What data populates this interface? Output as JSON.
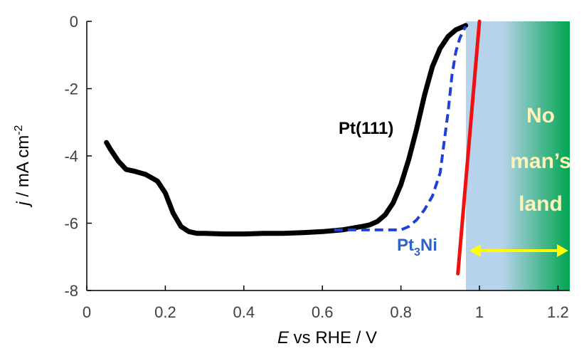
{
  "chart_data": {
    "type": "line",
    "xlabel": {
      "italic": "E",
      "rest": " vs RHE / V"
    },
    "ylabel": {
      "italic": "j",
      "rest": " / mA cm",
      "sup": "-2"
    },
    "xlim": [
      0,
      1.23
    ],
    "ylim": [
      -8,
      0
    ],
    "xticks": [
      0,
      0.2,
      0.4,
      0.6,
      0.8,
      1,
      1.2
    ],
    "xtick_labels": [
      "0",
      "0.2",
      "0.4",
      "0.6",
      "0.8",
      "1",
      "1.2"
    ],
    "yticks": [
      0,
      -2,
      -4,
      -6,
      -8
    ],
    "ytick_labels": [
      "0",
      "-2",
      "-4",
      "-6",
      "-8"
    ],
    "colors": {
      "pt111": "#000000",
      "pt3ni": "#1f3fd8",
      "ideal": "#ee1111",
      "arrow": "#ffff00",
      "zone_start": "#b7d3ec",
      "zone_end": "#00a550",
      "label_blue": "#2f62c4"
    },
    "series": [
      {
        "name": "Pt(111)",
        "style": "solid-thick",
        "x": [
          0.05,
          0.06,
          0.08,
          0.1,
          0.12,
          0.15,
          0.18,
          0.2,
          0.22,
          0.24,
          0.26,
          0.28,
          0.3,
          0.35,
          0.4,
          0.45,
          0.5,
          0.55,
          0.6,
          0.65,
          0.7,
          0.72,
          0.74,
          0.76,
          0.78,
          0.8,
          0.82,
          0.84,
          0.86,
          0.88,
          0.9,
          0.92,
          0.94,
          0.96,
          0.965
        ],
        "y": [
          -3.6,
          -3.8,
          -4.15,
          -4.4,
          -4.45,
          -4.55,
          -4.75,
          -5.1,
          -5.7,
          -6.1,
          -6.25,
          -6.3,
          -6.3,
          -6.32,
          -6.32,
          -6.3,
          -6.3,
          -6.28,
          -6.25,
          -6.2,
          -6.1,
          -6.05,
          -5.95,
          -5.75,
          -5.4,
          -4.85,
          -4.1,
          -3.2,
          -2.2,
          -1.35,
          -0.8,
          -0.45,
          -0.25,
          -0.15,
          -0.12
        ]
      },
      {
        "name": "Pt3Ni",
        "style": "dashed",
        "x": [
          0.63,
          0.7,
          0.75,
          0.8,
          0.82,
          0.84,
          0.86,
          0.88,
          0.9,
          0.91,
          0.92,
          0.93,
          0.94,
          0.95,
          0.96,
          0.965
        ],
        "y": [
          -6.2,
          -6.2,
          -6.2,
          -6.2,
          -6.1,
          -5.9,
          -5.6,
          -5.2,
          -4.5,
          -3.6,
          -2.7,
          -1.6,
          -0.9,
          -0.5,
          -0.25,
          -0.15
        ]
      },
      {
        "name": "ideal",
        "style": "solid-red",
        "x": [
          0.945,
          1.0
        ],
        "y": [
          -7.5,
          0
        ]
      }
    ],
    "annotations": {
      "pt111_label": "Pt(111)",
      "pt3ni_label_main": "Pt",
      "pt3ni_label_sub": "3",
      "pt3ni_label_end": "Ni",
      "zone_lines": [
        "No",
        "man’s",
        "land"
      ]
    }
  }
}
